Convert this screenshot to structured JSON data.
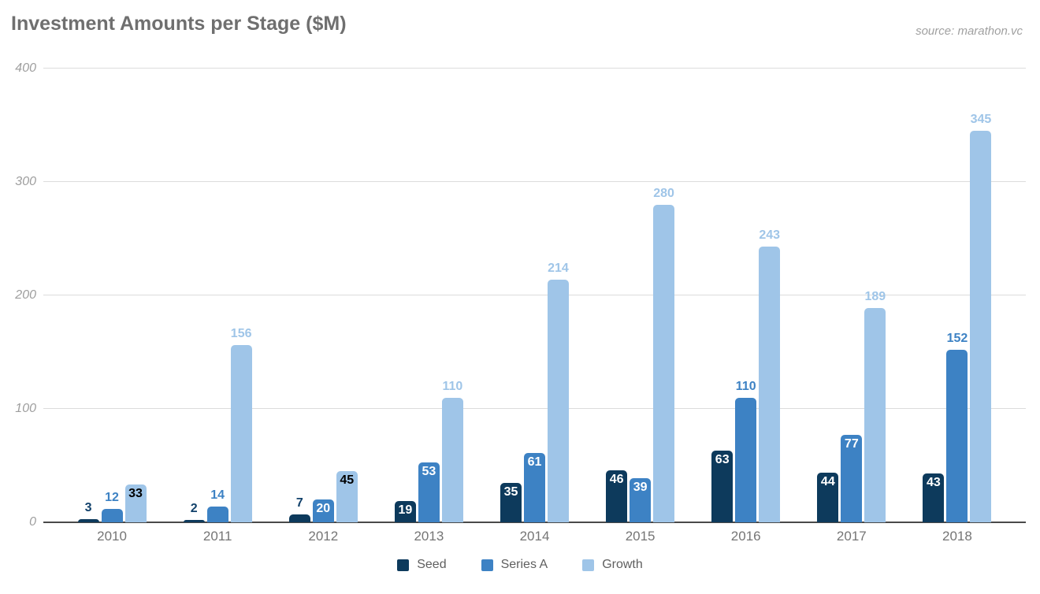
{
  "chart_data": {
    "type": "bar",
    "title": "Investment Amounts per Stage ($M)",
    "source": "source: marathon.vc",
    "xlabel": "",
    "ylabel": "",
    "ylim": [
      0,
      400
    ],
    "yticks": [
      0,
      100,
      200,
      300,
      400
    ],
    "grid": true,
    "legend_position": "bottom",
    "categories": [
      "2010",
      "2011",
      "2012",
      "2013",
      "2014",
      "2015",
      "2016",
      "2017",
      "2018"
    ],
    "series": [
      {
        "name": "Seed",
        "color": "#0d3a5c",
        "label_color_above": "#11416b",
        "label_color_inside": "#ffffff",
        "values": [
          3,
          2,
          7,
          19,
          35,
          46,
          63,
          44,
          43
        ],
        "label_placements": [
          "above",
          "above",
          "above",
          "inside",
          "inside",
          "inside",
          "inside",
          "inside",
          "inside"
        ]
      },
      {
        "name": "Series A",
        "color": "#3d82c4",
        "label_color_above": "#3d82c4",
        "label_color_inside": "#ffffff",
        "values": [
          12,
          14,
          20,
          53,
          61,
          39,
          110,
          77,
          152
        ],
        "label_placements": [
          "above",
          "above",
          "inside",
          "inside",
          "inside",
          "inside",
          "above",
          "inside",
          "above"
        ]
      },
      {
        "name": "Growth",
        "color": "#9fc5e8",
        "label_color_above": "#9fc5e8",
        "label_color_inside": "#000000",
        "values": [
          33,
          156,
          45,
          110,
          214,
          280,
          243,
          189,
          345
        ],
        "label_placements": [
          "inside",
          "above",
          "inside",
          "above",
          "above",
          "above",
          "above",
          "above",
          "above"
        ]
      }
    ],
    "colors": {
      "gridline": "#dcdcdc",
      "axis_line": "#4a4a4a",
      "tick_label": "#9e9e9e",
      "category_label": "#757575",
      "title": "#6f6f6f",
      "source": "#a0a0a0",
      "legend_label": "#5f5f5f"
    }
  }
}
